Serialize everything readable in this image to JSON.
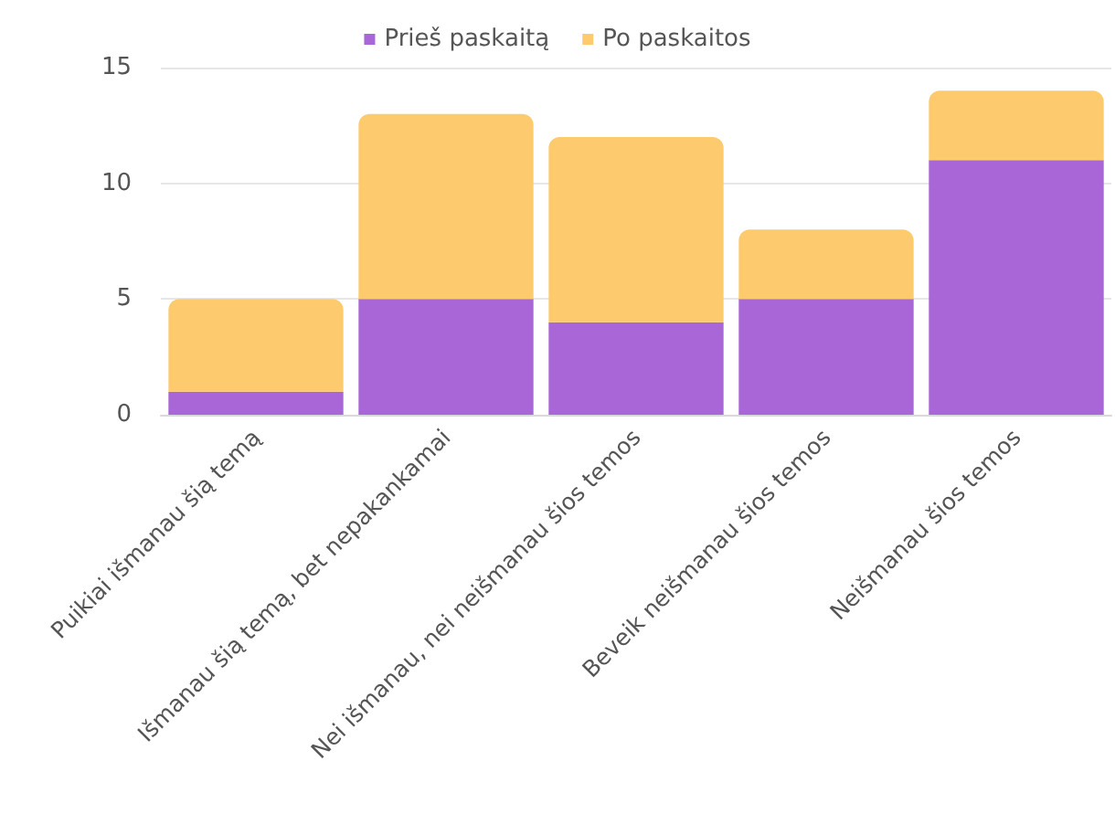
{
  "chart_data": {
    "type": "bar",
    "stacked": true,
    "categories": [
      "Puikiai išmanau šią temą",
      "Išmanau šią temą, bet nepakankamai",
      "Nei išmanau, nei neišmanau šios temos",
      "Beveik neišmanau šios temos",
      "Neišmanau šios temos"
    ],
    "series": [
      {
        "name": "Prieš paskaitą",
        "color": "#a866d6",
        "values": [
          1,
          5,
          4,
          5,
          11
        ]
      },
      {
        "name": "Po paskaitos",
        "color": "#fdcb6e",
        "values": [
          4,
          8,
          8,
          3,
          3
        ]
      }
    ],
    "ylim": [
      0,
      15
    ],
    "yticks": [
      0,
      5,
      10,
      15
    ],
    "grid": "y",
    "legend": "top"
  }
}
